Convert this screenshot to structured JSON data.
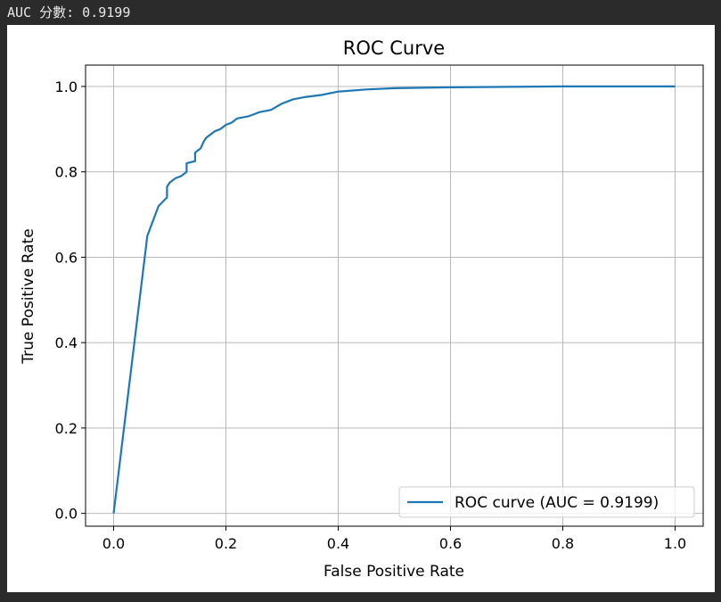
{
  "output": {
    "text": "AUC 分數: 0.9199"
  },
  "chart_data": {
    "type": "line",
    "title": "ROC Curve",
    "xlabel": "False Positive Rate",
    "ylabel": "True Positive Rate",
    "xlim": [
      -0.05,
      1.05
    ],
    "ylim": [
      -0.03,
      1.05
    ],
    "xticks": [
      0.0,
      0.2,
      0.4,
      0.6,
      0.8,
      1.0
    ],
    "yticks": [
      0.0,
      0.2,
      0.4,
      0.6,
      0.8,
      1.0
    ],
    "xtick_labels": [
      "0.0",
      "0.2",
      "0.4",
      "0.6",
      "0.8",
      "1.0"
    ],
    "ytick_labels": [
      "0.0",
      "0.2",
      "0.4",
      "0.6",
      "0.8",
      "1.0"
    ],
    "grid": true,
    "legend_position": "lower right",
    "series": [
      {
        "name": "ROC curve (AUC = 0.9199)",
        "color": "#1f77b4",
        "x": [
          0.0,
          0.06,
          0.08,
          0.095,
          0.095,
          0.1,
          0.11,
          0.12,
          0.13,
          0.13,
          0.145,
          0.145,
          0.155,
          0.16,
          0.165,
          0.17,
          0.18,
          0.19,
          0.2,
          0.21,
          0.22,
          0.24,
          0.25,
          0.26,
          0.28,
          0.3,
          0.32,
          0.34,
          0.37,
          0.4,
          0.45,
          0.5,
          0.6,
          0.7,
          0.8,
          1.0
        ],
        "y": [
          0.0,
          0.65,
          0.72,
          0.74,
          0.765,
          0.775,
          0.785,
          0.79,
          0.8,
          0.82,
          0.825,
          0.845,
          0.855,
          0.87,
          0.88,
          0.885,
          0.895,
          0.9,
          0.91,
          0.915,
          0.925,
          0.93,
          0.935,
          0.94,
          0.945,
          0.96,
          0.97,
          0.975,
          0.98,
          0.988,
          0.993,
          0.996,
          0.998,
          0.999,
          1.0,
          1.0
        ]
      }
    ]
  }
}
